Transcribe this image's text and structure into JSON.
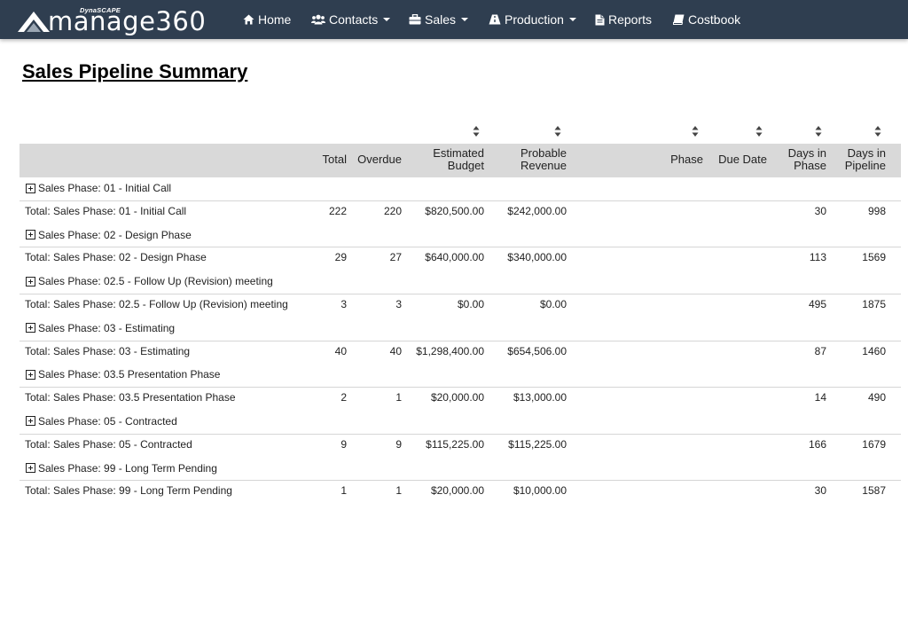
{
  "brand": {
    "small": "DynaSCAPE",
    "big": "manage360"
  },
  "nav": {
    "home": "Home",
    "contacts": "Contacts",
    "sales": "Sales",
    "production": "Production",
    "reports": "Reports",
    "costbook": "Costbook"
  },
  "page": {
    "title": "Sales Pipeline Summary"
  },
  "table": {
    "headers": {
      "total": "Total",
      "overdue": "Overdue",
      "estimated_budget_1": "Estimated",
      "estimated_budget_2": "Budget",
      "probable_revenue_1": "Probable",
      "probable_revenue_2": "Revenue",
      "phase": "Phase",
      "due_date": "Due Date",
      "days_in_phase_1": "Days in",
      "days_in_phase_2": "Phase",
      "days_in_pipeline_1": "Days in",
      "days_in_pipeline_2": "Pipeline"
    },
    "groups": [
      {
        "label": "Sales Phase:  01 - Initial Call",
        "total_label": "Total: Sales Phase:  01 - Initial Call",
        "total": "222",
        "overdue": "220",
        "budget": "$820,500.00",
        "revenue": "$242,000.00",
        "days_phase": "30",
        "days_pipeline": "998"
      },
      {
        "label": "Sales Phase:  02 - Design Phase",
        "total_label": "Total: Sales Phase:  02 - Design Phase",
        "total": "29",
        "overdue": "27",
        "budget": "$640,000.00",
        "revenue": "$340,000.00",
        "days_phase": "113",
        "days_pipeline": "1569"
      },
      {
        "label": "Sales Phase:  02.5 - Follow Up (Revision) meeting",
        "total_label": "Total: Sales Phase:  02.5 - Follow Up (Revision) meeting",
        "total": "3",
        "overdue": "3",
        "budget": "$0.00",
        "revenue": "$0.00",
        "days_phase": "495",
        "days_pipeline": "1875"
      },
      {
        "label": "Sales Phase:  03 - Estimating",
        "total_label": "Total: Sales Phase:  03 - Estimating",
        "total": "40",
        "overdue": "40",
        "budget": "$1,298,400.00",
        "revenue": "$654,506.00",
        "days_phase": "87",
        "days_pipeline": "1460"
      },
      {
        "label": "Sales Phase:  03.5 Presentation Phase",
        "total_label": "Total: Sales Phase:  03.5 Presentation Phase",
        "total": "2",
        "overdue": "1",
        "budget": "$20,000.00",
        "revenue": "$13,000.00",
        "days_phase": "14",
        "days_pipeline": "490"
      },
      {
        "label": "Sales Phase:  05 - Contracted",
        "total_label": "Total: Sales Phase:  05 - Contracted",
        "total": "9",
        "overdue": "9",
        "budget": "$115,225.00",
        "revenue": "$115,225.00",
        "days_phase": "166",
        "days_pipeline": "1679"
      },
      {
        "label": "Sales Phase:  99 - Long Term Pending",
        "total_label": "Total: Sales Phase:  99 - Long Term Pending",
        "total": "1",
        "overdue": "1",
        "budget": "$20,000.00",
        "revenue": "$10,000.00",
        "days_phase": "30",
        "days_pipeline": "1587"
      }
    ]
  },
  "icons": {
    "home": "home-icon",
    "contacts": "users-icon",
    "sales": "briefcase-icon",
    "production": "road-icon",
    "reports": "file-icon",
    "costbook": "book-icon",
    "expand": "plus-square-icon",
    "sort": "sort-icon"
  },
  "colors": {
    "navbar": "#2f3e50",
    "header_bg": "#d9d9d9"
  }
}
